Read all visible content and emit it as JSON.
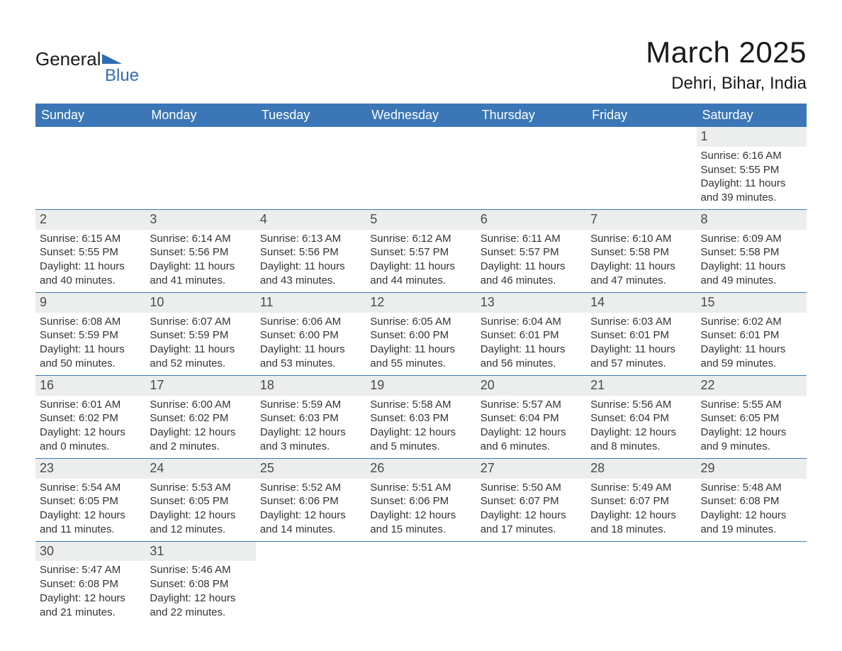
{
  "logo": {
    "text1": "General",
    "text2": "Blue"
  },
  "title": "March 2025",
  "location": "Dehri, Bihar, India",
  "colors": {
    "header_bg": "#3b77b6",
    "header_text": "#ffffff",
    "daynum_bg": "#eceeee",
    "row_border": "#3b77b6",
    "logo_blue": "#2e6db4",
    "body_text": "#333333",
    "page_bg": "#ffffff"
  },
  "typography": {
    "month_title_fontsize": 42,
    "location_fontsize": 24,
    "weekday_fontsize": 18,
    "daynum_fontsize": 18,
    "body_fontsize": 15
  },
  "weekdays": [
    "Sunday",
    "Monday",
    "Tuesday",
    "Wednesday",
    "Thursday",
    "Friday",
    "Saturday"
  ],
  "weeks": [
    [
      null,
      null,
      null,
      null,
      null,
      null,
      {
        "daynum": "1",
        "sunrise": "Sunrise: 6:16 AM",
        "sunset": "Sunset: 5:55 PM",
        "daylight": "Daylight: 11 hours and 39 minutes."
      }
    ],
    [
      {
        "daynum": "2",
        "sunrise": "Sunrise: 6:15 AM",
        "sunset": "Sunset: 5:55 PM",
        "daylight": "Daylight: 11 hours and 40 minutes."
      },
      {
        "daynum": "3",
        "sunrise": "Sunrise: 6:14 AM",
        "sunset": "Sunset: 5:56 PM",
        "daylight": "Daylight: 11 hours and 41 minutes."
      },
      {
        "daynum": "4",
        "sunrise": "Sunrise: 6:13 AM",
        "sunset": "Sunset: 5:56 PM",
        "daylight": "Daylight: 11 hours and 43 minutes."
      },
      {
        "daynum": "5",
        "sunrise": "Sunrise: 6:12 AM",
        "sunset": "Sunset: 5:57 PM",
        "daylight": "Daylight: 11 hours and 44 minutes."
      },
      {
        "daynum": "6",
        "sunrise": "Sunrise: 6:11 AM",
        "sunset": "Sunset: 5:57 PM",
        "daylight": "Daylight: 11 hours and 46 minutes."
      },
      {
        "daynum": "7",
        "sunrise": "Sunrise: 6:10 AM",
        "sunset": "Sunset: 5:58 PM",
        "daylight": "Daylight: 11 hours and 47 minutes."
      },
      {
        "daynum": "8",
        "sunrise": "Sunrise: 6:09 AM",
        "sunset": "Sunset: 5:58 PM",
        "daylight": "Daylight: 11 hours and 49 minutes."
      }
    ],
    [
      {
        "daynum": "9",
        "sunrise": "Sunrise: 6:08 AM",
        "sunset": "Sunset: 5:59 PM",
        "daylight": "Daylight: 11 hours and 50 minutes."
      },
      {
        "daynum": "10",
        "sunrise": "Sunrise: 6:07 AM",
        "sunset": "Sunset: 5:59 PM",
        "daylight": "Daylight: 11 hours and 52 minutes."
      },
      {
        "daynum": "11",
        "sunrise": "Sunrise: 6:06 AM",
        "sunset": "Sunset: 6:00 PM",
        "daylight": "Daylight: 11 hours and 53 minutes."
      },
      {
        "daynum": "12",
        "sunrise": "Sunrise: 6:05 AM",
        "sunset": "Sunset: 6:00 PM",
        "daylight": "Daylight: 11 hours and 55 minutes."
      },
      {
        "daynum": "13",
        "sunrise": "Sunrise: 6:04 AM",
        "sunset": "Sunset: 6:01 PM",
        "daylight": "Daylight: 11 hours and 56 minutes."
      },
      {
        "daynum": "14",
        "sunrise": "Sunrise: 6:03 AM",
        "sunset": "Sunset: 6:01 PM",
        "daylight": "Daylight: 11 hours and 57 minutes."
      },
      {
        "daynum": "15",
        "sunrise": "Sunrise: 6:02 AM",
        "sunset": "Sunset: 6:01 PM",
        "daylight": "Daylight: 11 hours and 59 minutes."
      }
    ],
    [
      {
        "daynum": "16",
        "sunrise": "Sunrise: 6:01 AM",
        "sunset": "Sunset: 6:02 PM",
        "daylight": "Daylight: 12 hours and 0 minutes."
      },
      {
        "daynum": "17",
        "sunrise": "Sunrise: 6:00 AM",
        "sunset": "Sunset: 6:02 PM",
        "daylight": "Daylight: 12 hours and 2 minutes."
      },
      {
        "daynum": "18",
        "sunrise": "Sunrise: 5:59 AM",
        "sunset": "Sunset: 6:03 PM",
        "daylight": "Daylight: 12 hours and 3 minutes."
      },
      {
        "daynum": "19",
        "sunrise": "Sunrise: 5:58 AM",
        "sunset": "Sunset: 6:03 PM",
        "daylight": "Daylight: 12 hours and 5 minutes."
      },
      {
        "daynum": "20",
        "sunrise": "Sunrise: 5:57 AM",
        "sunset": "Sunset: 6:04 PM",
        "daylight": "Daylight: 12 hours and 6 minutes."
      },
      {
        "daynum": "21",
        "sunrise": "Sunrise: 5:56 AM",
        "sunset": "Sunset: 6:04 PM",
        "daylight": "Daylight: 12 hours and 8 minutes."
      },
      {
        "daynum": "22",
        "sunrise": "Sunrise: 5:55 AM",
        "sunset": "Sunset: 6:05 PM",
        "daylight": "Daylight: 12 hours and 9 minutes."
      }
    ],
    [
      {
        "daynum": "23",
        "sunrise": "Sunrise: 5:54 AM",
        "sunset": "Sunset: 6:05 PM",
        "daylight": "Daylight: 12 hours and 11 minutes."
      },
      {
        "daynum": "24",
        "sunrise": "Sunrise: 5:53 AM",
        "sunset": "Sunset: 6:05 PM",
        "daylight": "Daylight: 12 hours and 12 minutes."
      },
      {
        "daynum": "25",
        "sunrise": "Sunrise: 5:52 AM",
        "sunset": "Sunset: 6:06 PM",
        "daylight": "Daylight: 12 hours and 14 minutes."
      },
      {
        "daynum": "26",
        "sunrise": "Sunrise: 5:51 AM",
        "sunset": "Sunset: 6:06 PM",
        "daylight": "Daylight: 12 hours and 15 minutes."
      },
      {
        "daynum": "27",
        "sunrise": "Sunrise: 5:50 AM",
        "sunset": "Sunset: 6:07 PM",
        "daylight": "Daylight: 12 hours and 17 minutes."
      },
      {
        "daynum": "28",
        "sunrise": "Sunrise: 5:49 AM",
        "sunset": "Sunset: 6:07 PM",
        "daylight": "Daylight: 12 hours and 18 minutes."
      },
      {
        "daynum": "29",
        "sunrise": "Sunrise: 5:48 AM",
        "sunset": "Sunset: 6:08 PM",
        "daylight": "Daylight: 12 hours and 19 minutes."
      }
    ],
    [
      {
        "daynum": "30",
        "sunrise": "Sunrise: 5:47 AM",
        "sunset": "Sunset: 6:08 PM",
        "daylight": "Daylight: 12 hours and 21 minutes."
      },
      {
        "daynum": "31",
        "sunrise": "Sunrise: 5:46 AM",
        "sunset": "Sunset: 6:08 PM",
        "daylight": "Daylight: 12 hours and 22 minutes."
      },
      null,
      null,
      null,
      null,
      null
    ]
  ]
}
